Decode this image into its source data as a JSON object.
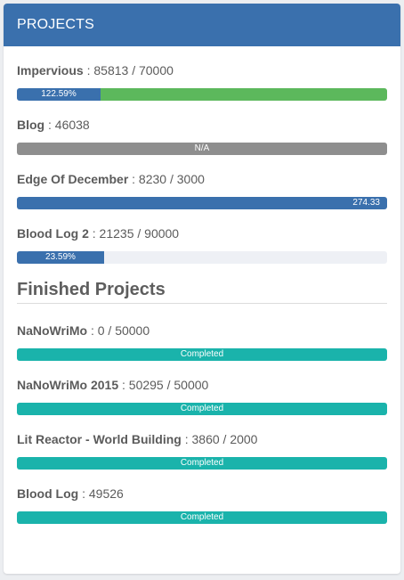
{
  "colors": {
    "header_bg": "#3a70ad",
    "bar_blue": "#3a70ad",
    "bar_green": "#5cb85c",
    "bar_gray": "#8e8e8e",
    "bar_teal": "#1ab3ab",
    "bar_track": "#eef0f5"
  },
  "panel": {
    "title": "PROJECTS"
  },
  "projects": [
    {
      "name": "Impervious",
      "stats": " : 85813 / 70000",
      "progress_label": "122.59%",
      "progress_percent": 122.59
    },
    {
      "name": "Blog",
      "stats": " : 46038",
      "progress_label": "N/A"
    },
    {
      "name": "Edge Of December",
      "stats": " : 8230 / 3000",
      "progress_label": "274.33",
      "progress_percent": 274.33
    },
    {
      "name": "Blood Log 2",
      "stats": " : 21235 / 90000",
      "progress_label": "23.59%",
      "progress_percent": 23.59
    }
  ],
  "finished": {
    "title": "Finished Projects",
    "items": [
      {
        "name": "NaNoWriMo",
        "stats": " : 0 / 50000",
        "progress_label": "Completed"
      },
      {
        "name": "NaNoWriMo 2015",
        "stats": " : 50295 / 50000",
        "progress_label": "Completed"
      },
      {
        "name": "Lit Reactor - World Building",
        "stats": " : 3860 / 2000",
        "progress_label": "Completed"
      },
      {
        "name": "Blood Log",
        "stats": " : 49526",
        "progress_label": "Completed"
      }
    ]
  }
}
